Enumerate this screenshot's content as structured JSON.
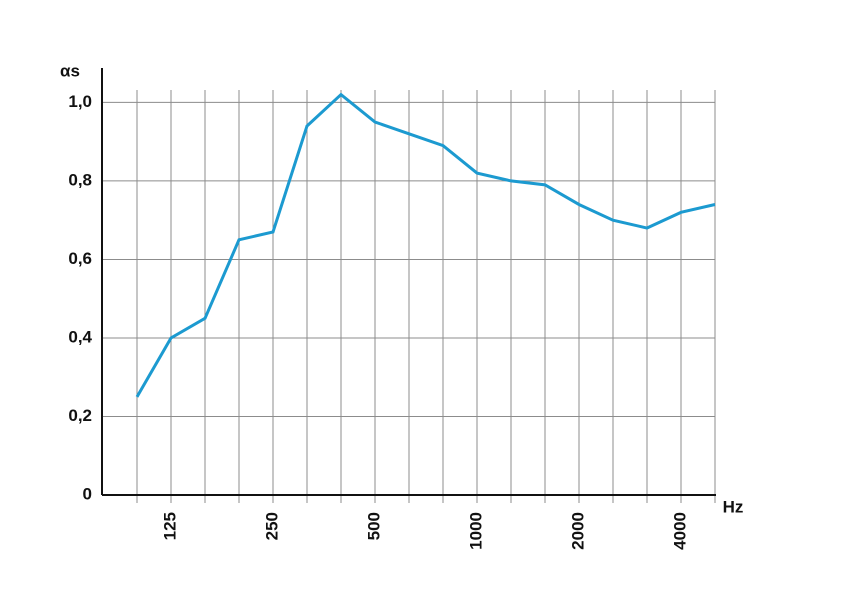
{
  "chart_data": {
    "type": "line",
    "y_label": "αs",
    "x_label": "Hz",
    "categories": [
      null,
      "125",
      null,
      null,
      "250",
      null,
      null,
      "500",
      null,
      null,
      "1000",
      null,
      null,
      "2000",
      null,
      null,
      "4000",
      null
    ],
    "series": [
      {
        "name": "αs",
        "color": "#1c9ad0",
        "values": [
          0.25,
          0.4,
          0.45,
          0.65,
          0.67,
          0.94,
          1.02,
          0.95,
          0.92,
          0.89,
          0.82,
          0.8,
          0.79,
          0.74,
          0.7,
          0.68,
          0.72,
          0.74
        ]
      }
    ],
    "ylim": [
      0,
      1.08
    ],
    "yticks": [
      0,
      {
        "value": 0.2,
        "label": "0,2"
      },
      {
        "value": 0.4,
        "label": "0,4"
      },
      {
        "value": 0.6,
        "label": "0,6"
      },
      {
        "value": 0.8,
        "label": "0,8"
      },
      {
        "value": 1,
        "label": "1,0"
      }
    ],
    "grid": true
  }
}
